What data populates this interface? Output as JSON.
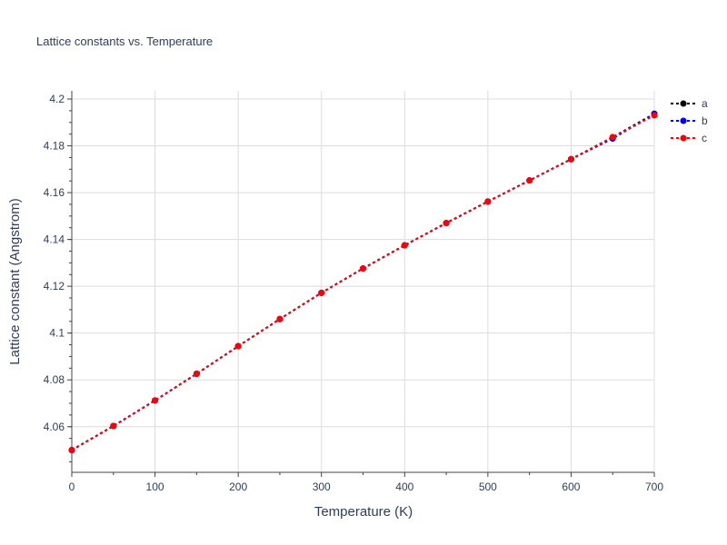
{
  "chart_data": {
    "type": "line",
    "title": "Lattice constants vs. Temperature",
    "xlabel": "Temperature (K)",
    "ylabel": "Lattice constant (Angstrom)",
    "xlim": [
      0,
      700
    ],
    "ylim": [
      4.0405,
      4.2035
    ],
    "x_ticks": [
      0,
      100,
      200,
      300,
      400,
      500,
      600,
      700
    ],
    "y_ticks": [
      4.06,
      4.08,
      4.1,
      4.12,
      4.14,
      4.16,
      4.18,
      4.2
    ],
    "y_tick_labels": [
      "4.06",
      "4.08",
      "4.1",
      "4.12",
      "4.14",
      "4.16",
      "4.18",
      "4.2"
    ],
    "grid": true,
    "legend_position": "top-right",
    "x": [
      0,
      50,
      100,
      150,
      200,
      250,
      300,
      350,
      400,
      450,
      500,
      550,
      600,
      650,
      700
    ],
    "series": [
      {
        "name": "a",
        "color": "#000000",
        "values": [
          4.05,
          4.0603,
          4.0712,
          4.0826,
          4.0944,
          4.106,
          4.1172,
          4.1276,
          4.1375,
          4.147,
          4.1562,
          4.1652,
          4.1743,
          4.1837,
          4.1937
        ]
      },
      {
        "name": "b",
        "color": "#0000ff",
        "values": [
          4.05,
          4.0603,
          4.0712,
          4.0826,
          4.0944,
          4.106,
          4.1172,
          4.1276,
          4.1375,
          4.147,
          4.1562,
          4.1652,
          4.1743,
          4.1831,
          4.1937
        ]
      },
      {
        "name": "c",
        "color": "#ff0000",
        "values": [
          4.05,
          4.0603,
          4.0712,
          4.0826,
          4.0944,
          4.106,
          4.1172,
          4.1276,
          4.1375,
          4.147,
          4.1562,
          4.1652,
          4.1743,
          4.1837,
          4.193
        ]
      }
    ]
  }
}
